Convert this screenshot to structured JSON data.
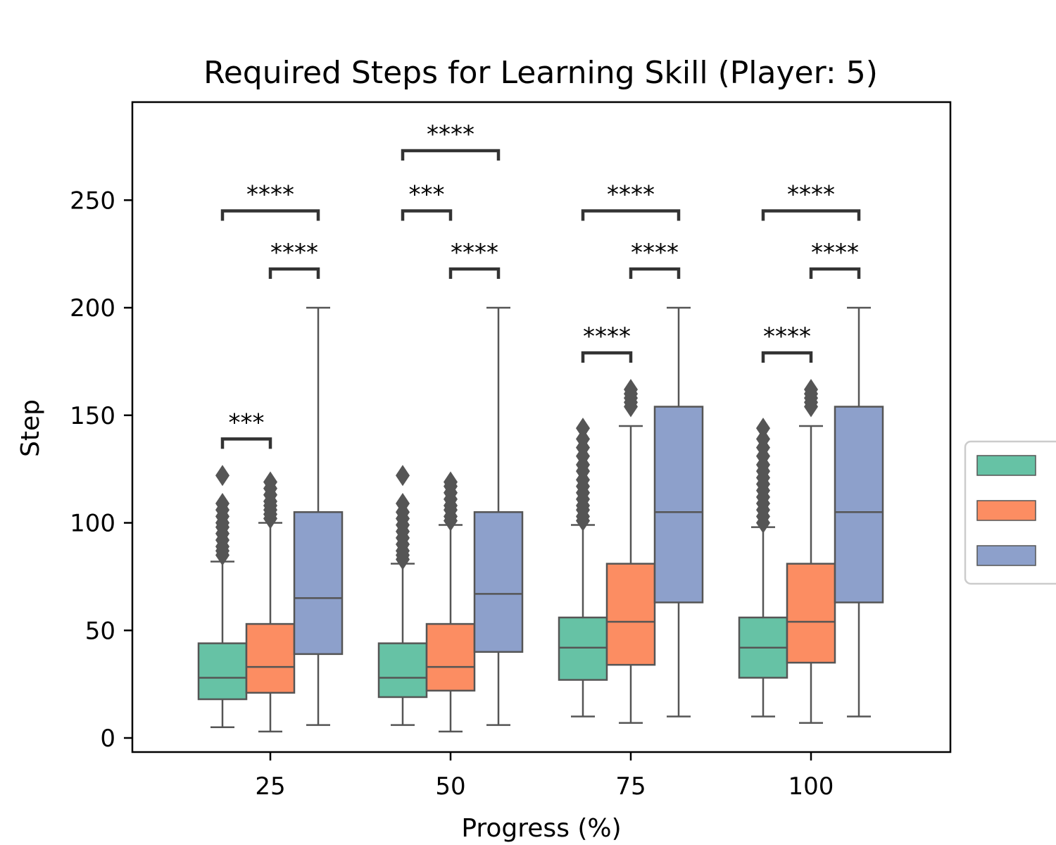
{
  "chart_data": {
    "type": "box",
    "title": "Required Steps for Learning Skill (Player: 5)",
    "xlabel": "Progress (%)",
    "ylabel": "Step",
    "categories": [
      "25",
      "50",
      "75",
      "100"
    ],
    "yticks": [
      "0",
      "50",
      "100",
      "150",
      "200",
      "250"
    ],
    "ylim": [
      -7,
      296
    ],
    "legend": {
      "placement": "right",
      "entries_text_visible": false
    },
    "grid": false,
    "series": [
      {
        "color": "#66c2a5",
        "boxes": [
          {
            "whisker_low": 5,
            "q1": 18,
            "median": 28,
            "q3": 44,
            "whisker_high": 82,
            "outliers": [
              85,
              87,
              89,
              92,
              95,
              98,
              100,
              103,
              106,
              109,
              122
            ]
          },
          {
            "whisker_low": 6,
            "q1": 19,
            "median": 28,
            "q3": 44,
            "whisker_high": 81,
            "outliers": [
              83,
              85,
              87,
              90,
              93,
              96,
              99,
              102,
              105,
              109,
              122
            ]
          },
          {
            "whisker_low": 10,
            "q1": 27,
            "median": 42,
            "q3": 56,
            "whisker_high": 99,
            "outliers": [
              101,
              103,
              106,
              108,
              111,
              114,
              117,
              120,
              124,
              127,
              131,
              135,
              139,
              144
            ]
          },
          {
            "whisker_low": 10,
            "q1": 28,
            "median": 42,
            "q3": 56,
            "whisker_high": 98,
            "outliers": [
              100,
              103,
              106,
              109,
              112,
              115,
              118,
              121,
              124,
              127,
              131,
              135,
              139,
              144
            ]
          }
        ]
      },
      {
        "color": "#fc8d62",
        "boxes": [
          {
            "whisker_low": 3,
            "q1": 21,
            "median": 33,
            "q3": 53,
            "whisker_high": 100,
            "outliers": [
              102,
              104,
              106,
              108,
              110,
              113,
              116,
              119
            ]
          },
          {
            "whisker_low": 3,
            "q1": 22,
            "median": 33,
            "q3": 53,
            "whisker_high": 99,
            "outliers": [
              101,
              103,
              106,
              108,
              111,
              114,
              117,
              119
            ]
          },
          {
            "whisker_low": 7,
            "q1": 34,
            "median": 54,
            "q3": 81,
            "whisker_high": 145,
            "outliers": [
              154,
              156,
              158,
              160,
              162
            ]
          },
          {
            "whisker_low": 7,
            "q1": 35,
            "median": 54,
            "q3": 81,
            "whisker_high": 145,
            "outliers": [
              154,
              156,
              158,
              160,
              162
            ]
          }
        ]
      },
      {
        "color": "#8da0cb",
        "boxes": [
          {
            "whisker_low": 6,
            "q1": 39,
            "median": 65,
            "q3": 105,
            "whisker_high": 200,
            "outliers": []
          },
          {
            "whisker_low": 6,
            "q1": 40,
            "median": 67,
            "q3": 105,
            "whisker_high": 200,
            "outliers": []
          },
          {
            "whisker_low": 10,
            "q1": 63,
            "median": 105,
            "q3": 154,
            "whisker_high": 200,
            "outliers": []
          },
          {
            "whisker_low": 10,
            "q1": 63,
            "median": 105,
            "q3": 154,
            "whisker_high": 200,
            "outliers": []
          }
        ]
      }
    ],
    "annotations": [
      {
        "category": 0,
        "from": 0,
        "to": 1,
        "y": 139,
        "label": "***"
      },
      {
        "category": 0,
        "from": 1,
        "to": 2,
        "y": 218,
        "label": "****"
      },
      {
        "category": 0,
        "from": 0,
        "to": 2,
        "y": 245,
        "label": "****"
      },
      {
        "category": 1,
        "from": 1,
        "to": 2,
        "y": 218,
        "label": "****"
      },
      {
        "category": 1,
        "from": 0,
        "to": 1,
        "y": 245,
        "label": "***"
      },
      {
        "category": 1,
        "from": 0,
        "to": 2,
        "y": 273,
        "label": "****"
      },
      {
        "category": 2,
        "from": 0,
        "to": 1,
        "y": 179,
        "label": "****"
      },
      {
        "category": 2,
        "from": 1,
        "to": 2,
        "y": 218,
        "label": "****"
      },
      {
        "category": 2,
        "from": 0,
        "to": 2,
        "y": 245,
        "label": "****"
      },
      {
        "category": 3,
        "from": 0,
        "to": 1,
        "y": 179,
        "label": "****"
      },
      {
        "category": 3,
        "from": 1,
        "to": 2,
        "y": 218,
        "label": "****"
      },
      {
        "category": 3,
        "from": 0,
        "to": 2,
        "y": 245,
        "label": "****"
      }
    ]
  }
}
